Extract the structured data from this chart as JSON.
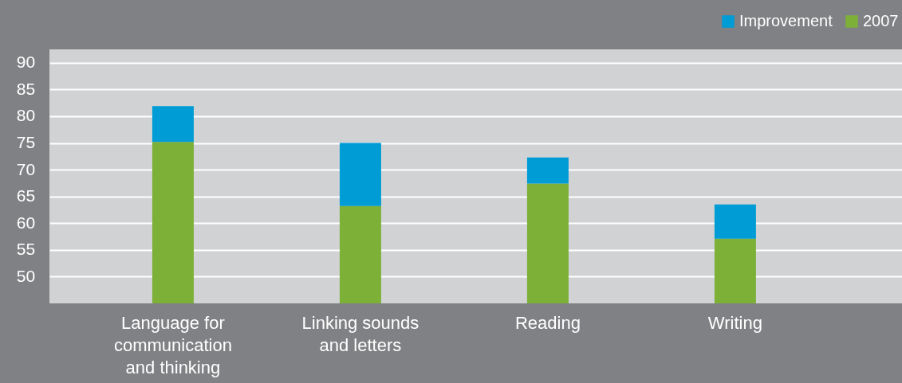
{
  "chart_data": {
    "type": "bar",
    "stacked": true,
    "categories": [
      "Language for communication and thinking",
      "Linking sounds and letters",
      "Reading",
      "Writing"
    ],
    "series": [
      {
        "name": "2007",
        "color": "#7cb037",
        "values": [
          75.2,
          63.2,
          67.4,
          57.1
        ]
      },
      {
        "name": "Improvement",
        "color": "#009cd6",
        "base": [
          75.2,
          63.2,
          67.4,
          57.1
        ],
        "values": [
          6.7,
          11.8,
          4.9,
          6.4
        ]
      }
    ],
    "ylim": [
      45,
      92.5
    ],
    "yticks": [
      50,
      55,
      60,
      65,
      70,
      75,
      80,
      85,
      90
    ],
    "grid": "y",
    "legend": "top right"
  }
}
